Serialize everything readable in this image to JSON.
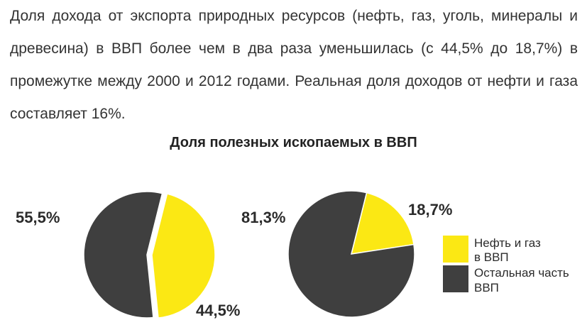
{
  "text": {
    "paragraph": "Доля дохода от экспорта природных ресурсов (нефть, газ, уголь, минералы и древесина) в ВВП более чем в два раза уменьшилась (с 44,5% до 18,7%) в промежутке между 2000 и 2012 годами. Реальная доля доходов от нефти и газа составляет 16%."
  },
  "colors": {
    "oil_gas": "#fbe814",
    "rest": "#3f3f3f"
  },
  "chart_data": {
    "type": "pie",
    "title": "Доля полезных ископаемых в ВВП",
    "legend_position": "right",
    "legend": [
      {
        "label_line1": "Нефть и газ",
        "label_line2": "в ВВП"
      },
      {
        "label_line1": "Остальная часть",
        "label_line2": "ВВП"
      }
    ],
    "pies": [
      {
        "slices": [
          {
            "name": "Нефть и газ в ВВП",
            "value": 44.5,
            "label": "44,5%"
          },
          {
            "name": "Остальная часть ВВП",
            "value": 55.5,
            "label": "55,5%"
          }
        ]
      },
      {
        "slices": [
          {
            "name": "Нефть и газ в ВВП",
            "value": 18.7,
            "label": "18,7%"
          },
          {
            "name": "Остальная часть ВВП",
            "value": 81.3,
            "label": "81,3%"
          }
        ]
      }
    ]
  }
}
